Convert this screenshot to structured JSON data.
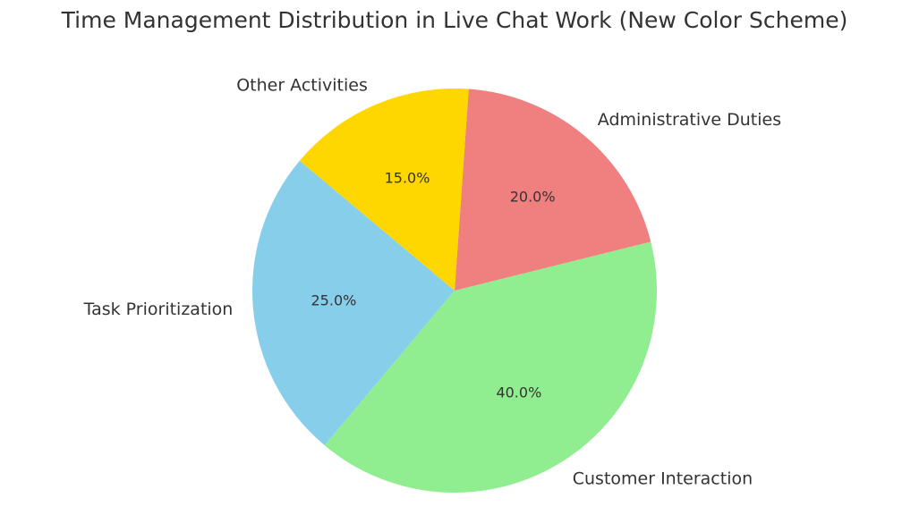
{
  "chart_data": {
    "type": "pie",
    "title": "Time Management Distribution in Live Chat Work (New Color Scheme)",
    "categories": [
      "Task Prioritization",
      "Customer Interaction",
      "Administrative Duties",
      "Other Activities"
    ],
    "values": [
      25,
      40,
      20,
      15
    ],
    "value_labels": [
      "25.0%",
      "40.0%",
      "20.0%",
      "15.0%"
    ],
    "colors": [
      "#87ceeb",
      "#90ee90",
      "#f08080",
      "#ffd700"
    ]
  }
}
